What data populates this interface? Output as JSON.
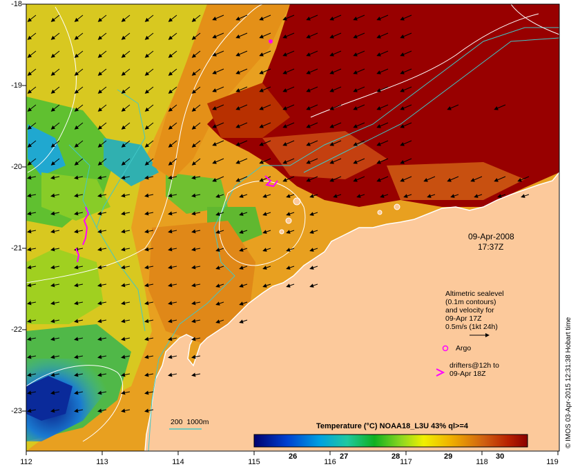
{
  "map": {
    "y_ticks": [
      "-18",
      "-19",
      "-20",
      "-21",
      "-22",
      "-23"
    ],
    "x_ticks": [
      "112",
      "113",
      "114",
      "115",
      "116",
      "117",
      "118",
      "119"
    ],
    "datetime": {
      "date": "09-Apr-2008",
      "time": "17:37Z"
    },
    "legend": {
      "sealevel_lines": [
        "Altimetric sealevel",
        "(0.1m contours)",
        "and velocity for",
        "09-Apr 17Z",
        "0.5m/s (1kt 24h)"
      ],
      "argo_label": "Argo",
      "drifters_lines": [
        "drifters@12h to",
        "09-Apr 18Z"
      ],
      "depth_label": "200  1000m"
    },
    "colorbar": {
      "title": "Temperature (°C) NOAA18_L3U 43% ql>=4",
      "ticks": [
        "26",
        "27",
        "28",
        "29",
        "30"
      ]
    },
    "credit": "© IMOS 03-Apr-2015 12:31:38 Hobart time",
    "colors": {
      "land": "#fcc99b",
      "hot": "#980000",
      "cool": "#0a1f8a",
      "vector": "#000000",
      "contour": "#ffffff",
      "bathymetry": "#40c8c8",
      "marker": "#ff00ff"
    }
  }
}
